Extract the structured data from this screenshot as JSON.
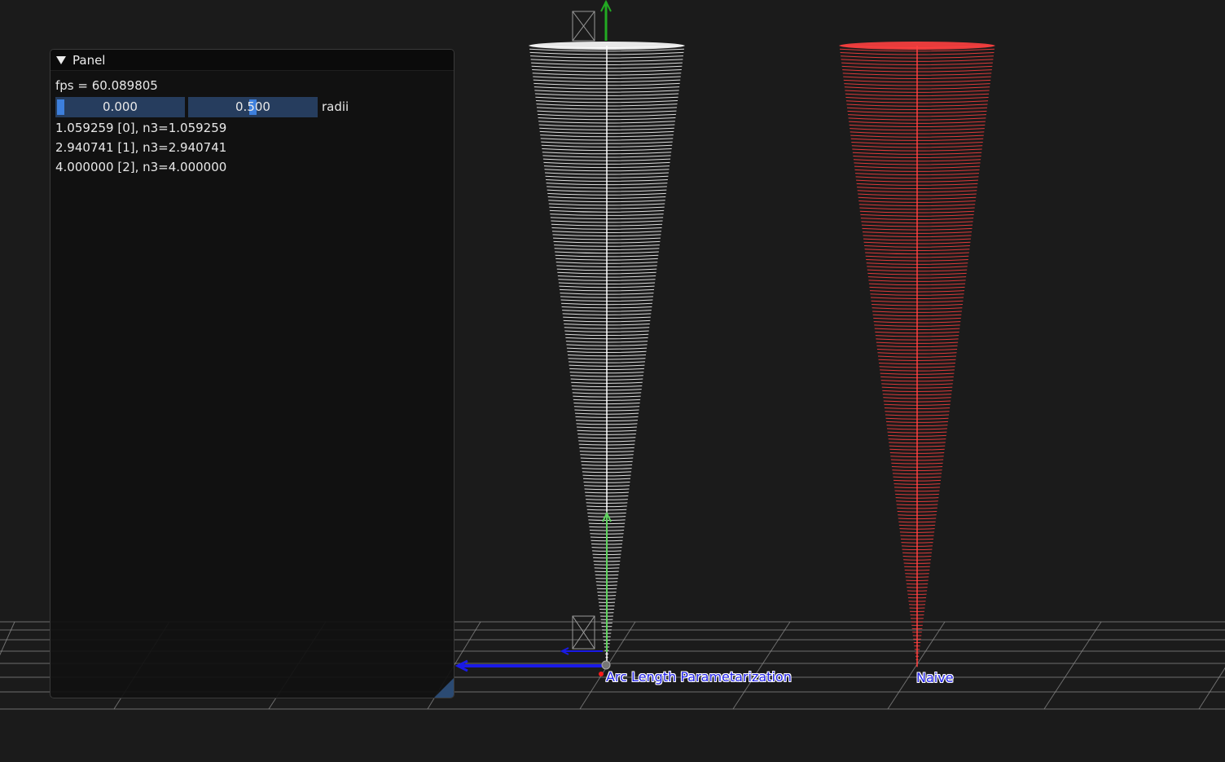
{
  "panel": {
    "title": "Panel",
    "fps_text": "fps = 60.089805",
    "sliders": [
      {
        "value_text": "0.000",
        "value": 0.0
      },
      {
        "value_text": "0.500",
        "value": 0.5
      }
    ],
    "slider_label": "radii",
    "lines": [
      "1.059259 [0], n3=1.059259",
      "2.940741 [1], n3=2.940741",
      "4.000000 [2], n3=4.000000"
    ]
  },
  "scene": {
    "labels": {
      "arc_length": "Arc Length Parametarization",
      "naive": "Naive"
    },
    "colors": {
      "background": "#1b1b1b",
      "grid": "#8a8a8a",
      "arc_cone": "#ffffff",
      "naive_cone": "#ff4040",
      "axis_y": "#22aa22",
      "axis_x": "#1a1ae6",
      "axis_origin": "#ff1a1a",
      "label_text": "#2424e6"
    }
  }
}
